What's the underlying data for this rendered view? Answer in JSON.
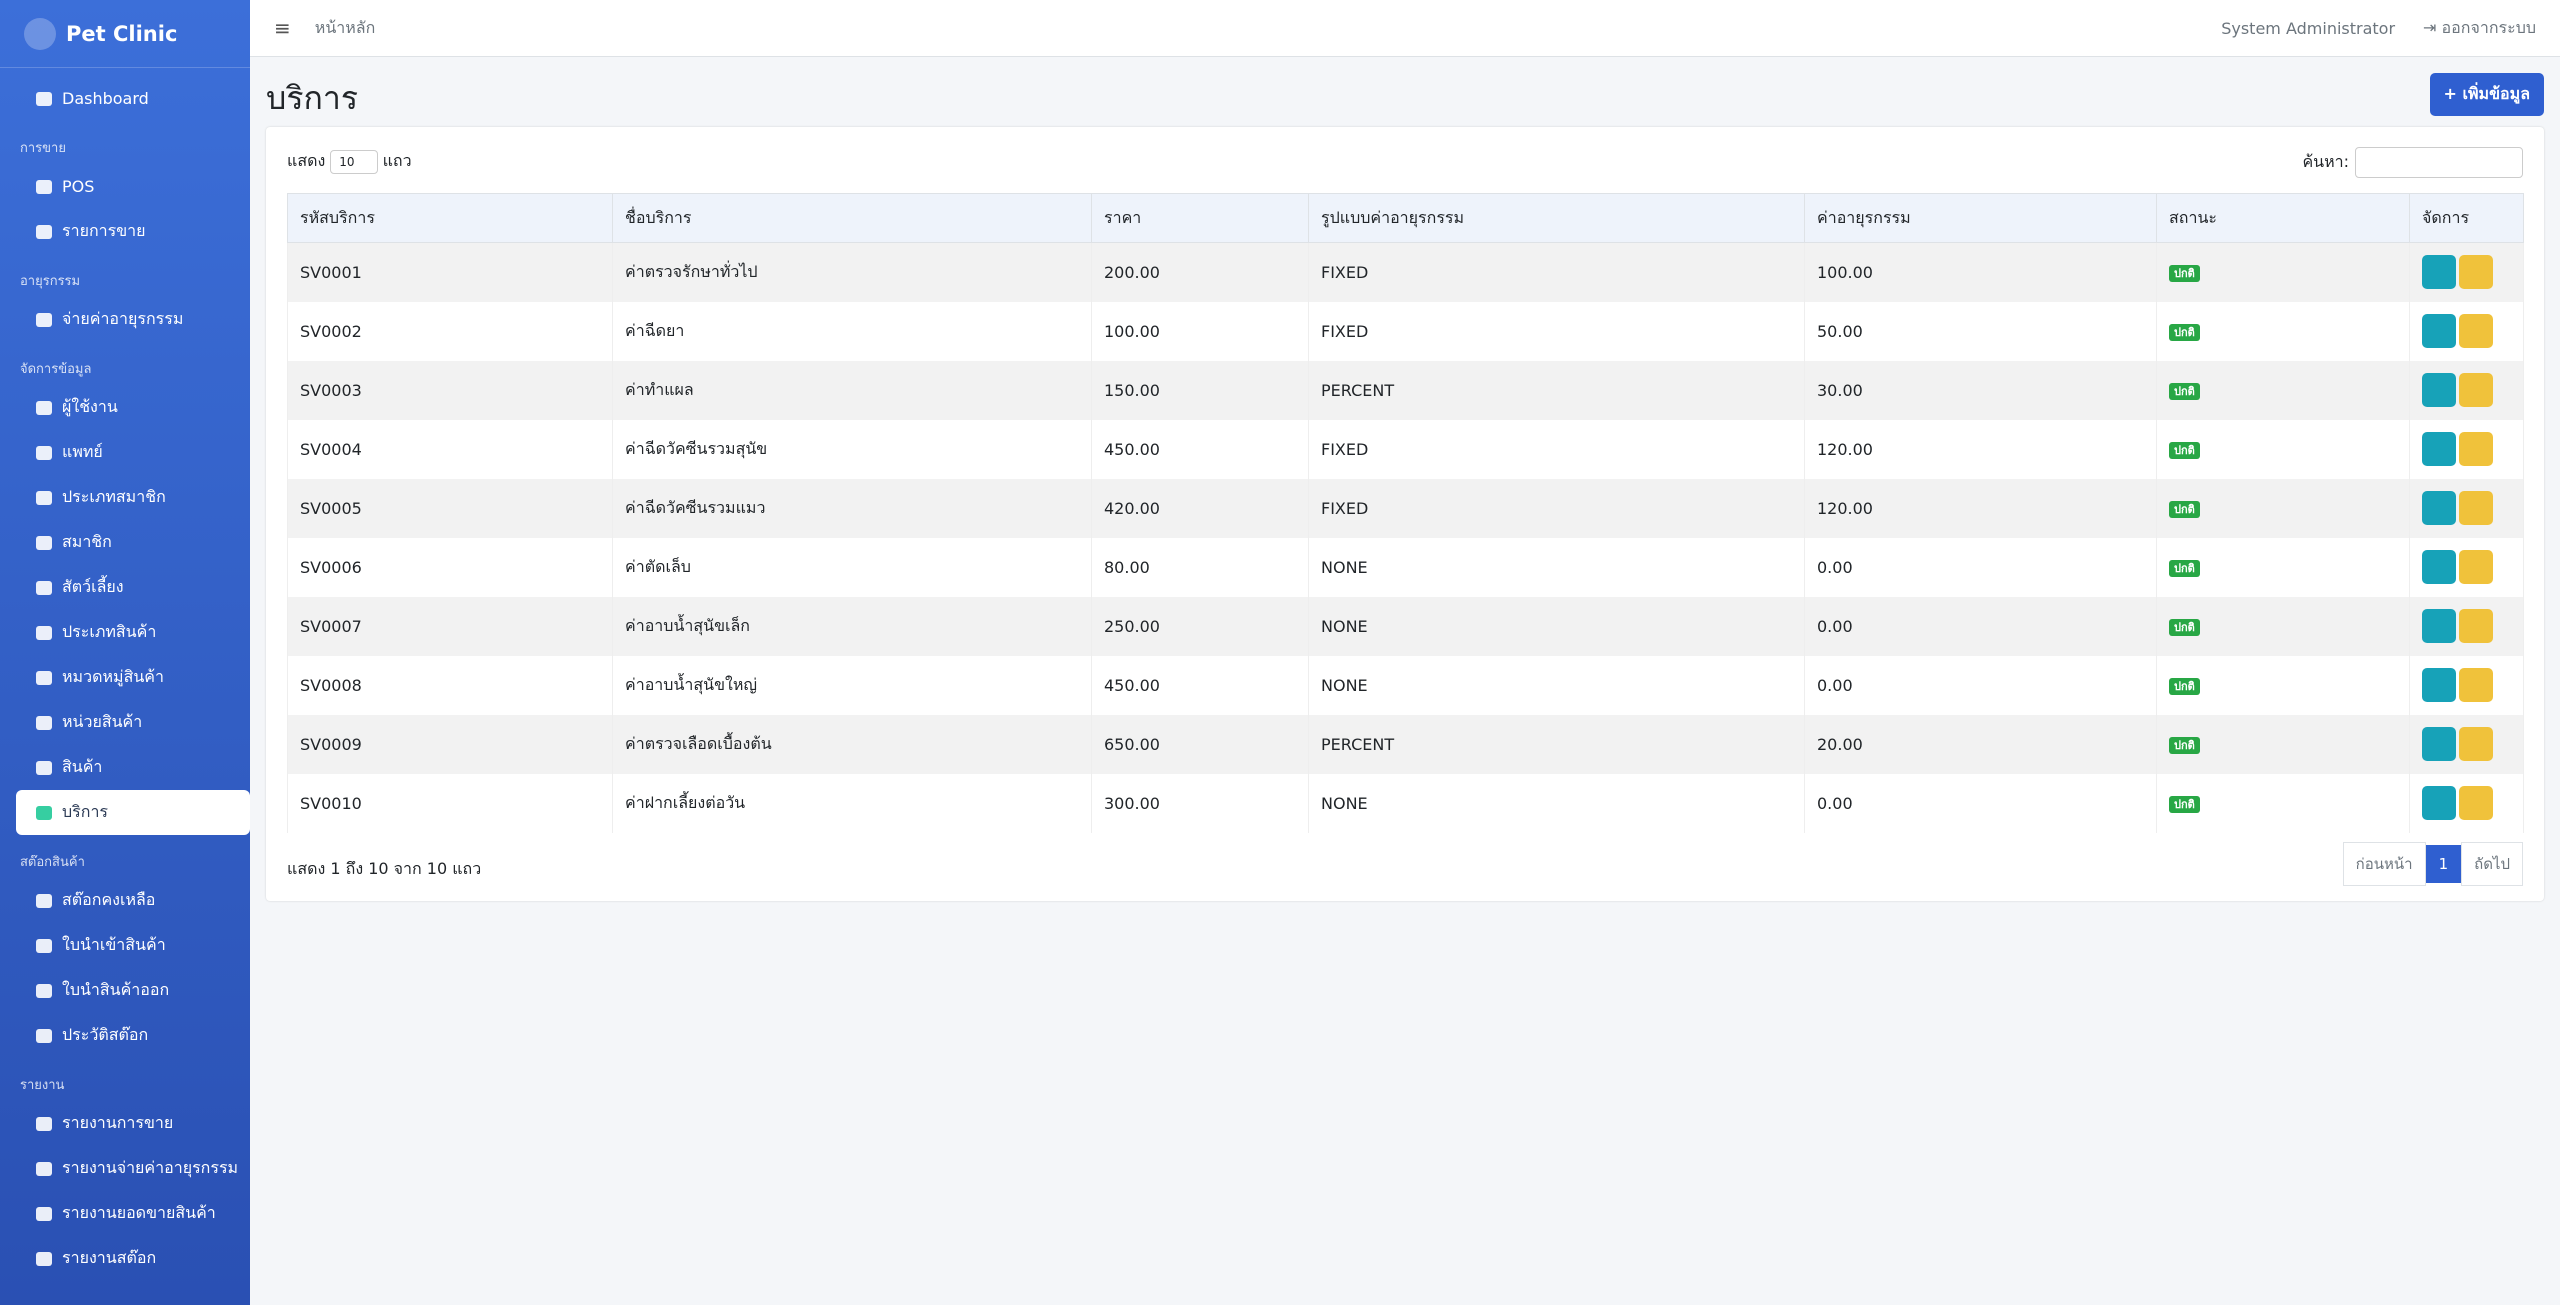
{
  "sidebar": {
    "brand": "Pet Clinic",
    "dashboard": "Dashboard",
    "sections": [
      {
        "title": "การขาย",
        "items": [
          "POS",
          "รายการขาย"
        ]
      },
      {
        "title": "อายุรกรรม",
        "items": [
          "จ่ายค่าอายุรกรรม"
        ]
      },
      {
        "title": "จัดการข้อมูล",
        "items": [
          "ผู้ใช้งาน",
          "แพทย์",
          "ประเภทสมาชิก",
          "สมาชิก",
          "สัตว์เลี้ยง",
          "ประเภทสินค้า",
          "หมวดหมู่สินค้า",
          "หน่วยสินค้า",
          "สินค้า",
          "บริการ"
        ]
      },
      {
        "title": "สต๊อกสินค้า",
        "items": [
          "สต๊อกคงเหลือ",
          "ใบนำเข้าสินค้า",
          "ใบนำสินค้าออก",
          "ประวัติสต๊อก"
        ]
      },
      {
        "title": "รายงาน",
        "items": [
          "รายงานการขาย",
          "รายงานจ่ายค่าอายุรกรรม",
          "รายงานยอดขายสินค้า",
          "รายงานสต๊อก"
        ]
      }
    ]
  },
  "topbar": {
    "breadcrumb": "หน้าหลัก",
    "user": "System Administrator",
    "logout": "ออกจากระบบ"
  },
  "page": {
    "title": "บริการ",
    "add_button": "เพิ่มข้อมูล"
  },
  "table": {
    "show_prefix": "แสดง",
    "page_size": "10",
    "show_suffix": "แถว",
    "search_label": "ค้นหา:",
    "columns": [
      "รหัสบริการ",
      "ชื่อบริการ",
      "ราคา",
      "รูปแบบค่าอายุรกรรม",
      "ค่าอายุรกรรม",
      "สถานะ",
      "จัดการ"
    ],
    "rows": [
      [
        "SV0001",
        "ค่าตรวจรักษาทั่วไป",
        "200.00",
        "FIXED",
        "100.00",
        "ปกติ"
      ],
      [
        "SV0002",
        "ค่าฉีดยา",
        "100.00",
        "FIXED",
        "50.00",
        "ปกติ"
      ],
      [
        "SV0003",
        "ค่าทำแผล",
        "150.00",
        "PERCENT",
        "30.00",
        "ปกติ"
      ],
      [
        "SV0004",
        "ค่าฉีดวัคซีนรวมสุนัข",
        "450.00",
        "FIXED",
        "120.00",
        "ปกติ"
      ],
      [
        "SV0005",
        "ค่าฉีดวัคซีนรวมแมว",
        "420.00",
        "FIXED",
        "120.00",
        "ปกติ"
      ],
      [
        "SV0006",
        "ค่าตัดเล็บ",
        "80.00",
        "NONE",
        "0.00",
        "ปกติ"
      ],
      [
        "SV0007",
        "ค่าอาบน้ำสุนัขเล็ก",
        "250.00",
        "NONE",
        "0.00",
        "ปกติ"
      ],
      [
        "SV0008",
        "ค่าอาบน้ำสุนัขใหญ่",
        "450.00",
        "NONE",
        "0.00",
        "ปกติ"
      ],
      [
        "SV0009",
        "ค่าตรวจเลือดเบื้องต้น",
        "650.00",
        "PERCENT",
        "20.00",
        "ปกติ"
      ],
      [
        "SV0010",
        "ค่าฝากเลี้ยงต่อวัน",
        "300.00",
        "NONE",
        "0.00",
        "ปกติ"
      ]
    ]
  },
  "footer": {
    "info": "แสดง 1 ถึง 10 จาก 10 แถว",
    "prev": "ก่อนหน้า",
    "page": "1",
    "next": "ถัดไป"
  }
}
